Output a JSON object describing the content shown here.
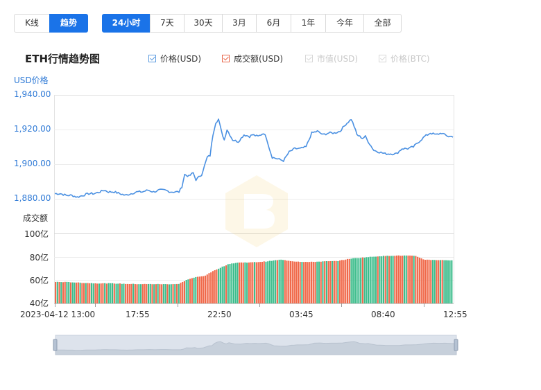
{
  "view_toggle": {
    "kline": "K线",
    "trend": "趋势",
    "active": "trend"
  },
  "ranges": {
    "items": [
      "24小时",
      "7天",
      "30天",
      "3月",
      "6月",
      "1年",
      "今年",
      "全部"
    ],
    "active_index": 0
  },
  "chart_title": "ETH行情趋势图",
  "legend": {
    "price_usd": "价格(USD)",
    "volume_usd": "成交额(USD)",
    "market_cap_usd": "市值(USD)",
    "price_btc": "价格(BTC)"
  },
  "colors": {
    "price_line": "#4a90e2",
    "volume_up": "#f0694a",
    "volume_down": "#3dbd8c",
    "accent": "#1a73e8",
    "disabled": "#c8c8c8"
  },
  "chart_data": {
    "type": "line",
    "title": "ETH行情趋势图",
    "price_axis": {
      "label": "USD价格",
      "ticks": [
        "1,940.00",
        "1,920.00",
        "1,900.00",
        "1,880.00"
      ],
      "ylim": [
        1871,
        1941
      ]
    },
    "volume_axis": {
      "label": "成交额",
      "ticks": [
        "100亿",
        "80亿",
        "60亿",
        "40亿"
      ],
      "ylim": [
        40,
        100
      ]
    },
    "x_ticks": [
      "2023-04-12 13:00",
      "17:55",
      "22:50",
      "03:45",
      "08:40",
      "12:55"
    ],
    "series": [
      {
        "name": "价格(USD)",
        "type": "line",
        "points": [
          [
            0,
            1883
          ],
          [
            4,
            1883
          ],
          [
            8,
            1882
          ],
          [
            12,
            1882
          ],
          [
            16,
            1881
          ],
          [
            20,
            1882
          ],
          [
            24,
            1883
          ],
          [
            28,
            1883
          ],
          [
            32,
            1884
          ],
          [
            35,
            1885
          ],
          [
            38,
            1884
          ],
          [
            42,
            1884
          ],
          [
            46,
            1883
          ],
          [
            50,
            1882
          ],
          [
            54,
            1883
          ],
          [
            58,
            1884
          ],
          [
            62,
            1884
          ],
          [
            66,
            1885
          ],
          [
            70,
            1884
          ],
          [
            74,
            1885
          ],
          [
            78,
            1885
          ],
          [
            82,
            1884
          ],
          [
            86,
            1884
          ],
          [
            88,
            1884
          ],
          [
            90,
            1887
          ],
          [
            92,
            1894
          ],
          [
            95,
            1893
          ],
          [
            98,
            1895
          ],
          [
            100,
            1891
          ],
          [
            104,
            1894
          ],
          [
            108,
            1904
          ],
          [
            110,
            1905
          ],
          [
            112,
            1917
          ],
          [
            114,
            1924
          ],
          [
            116,
            1926
          ],
          [
            118,
            1919
          ],
          [
            120,
            1914
          ],
          [
            122,
            1920
          ],
          [
            126,
            1914
          ],
          [
            130,
            1913
          ],
          [
            134,
            1917
          ],
          [
            138,
            1916
          ],
          [
            140,
            1917
          ],
          [
            144,
            1916
          ],
          [
            148,
            1918
          ],
          [
            150,
            1915
          ],
          [
            152,
            1909
          ],
          [
            154,
            1904
          ],
          [
            158,
            1903
          ],
          [
            162,
            1902
          ],
          [
            166,
            1907
          ],
          [
            170,
            1909
          ],
          [
            174,
            1909
          ],
          [
            178,
            1910
          ],
          [
            182,
            1918
          ],
          [
            186,
            1919
          ],
          [
            190,
            1917
          ],
          [
            194,
            1918
          ],
          [
            198,
            1918
          ],
          [
            202,
            1919
          ],
          [
            206,
            1923
          ],
          [
            210,
            1926
          ],
          [
            212,
            1922
          ],
          [
            214,
            1917
          ],
          [
            218,
            1915
          ],
          [
            220,
            1916
          ],
          [
            222,
            1913
          ],
          [
            226,
            1908
          ],
          [
            230,
            1907
          ],
          [
            234,
            1906
          ],
          [
            238,
            1906
          ],
          [
            242,
            1906
          ],
          [
            246,
            1909
          ],
          [
            250,
            1909
          ],
          [
            254,
            1910
          ],
          [
            258,
            1913
          ],
          [
            262,
            1916
          ],
          [
            266,
            1918
          ],
          [
            270,
            1917
          ],
          [
            274,
            1918
          ],
          [
            276,
            1917
          ],
          [
            279,
            1916
          ],
          [
            282,
            1916
          ]
        ]
      },
      {
        "name": "成交额(USD)",
        "type": "bar",
        "points": [
          [
            0,
            58.5
          ],
          [
            10,
            58.3
          ],
          [
            20,
            57.6
          ],
          [
            30,
            57.2
          ],
          [
            40,
            57.2
          ],
          [
            50,
            56.8
          ],
          [
            60,
            56.6
          ],
          [
            70,
            56.6
          ],
          [
            80,
            56.5
          ],
          [
            88,
            56.7
          ],
          [
            94,
            60.5
          ],
          [
            100,
            62.5
          ],
          [
            106,
            63.5
          ],
          [
            112,
            67.5
          ],
          [
            118,
            71.0
          ],
          [
            124,
            74.0
          ],
          [
            130,
            75.0
          ],
          [
            140,
            75.2
          ],
          [
            150,
            76.0
          ],
          [
            160,
            77.5
          ],
          [
            170,
            76.0
          ],
          [
            180,
            75.5
          ],
          [
            190,
            76.0
          ],
          [
            200,
            76.3
          ],
          [
            210,
            78.5
          ],
          [
            220,
            79.5
          ],
          [
            230,
            80.5
          ],
          [
            240,
            81.0
          ],
          [
            250,
            81.0
          ],
          [
            256,
            80.6
          ],
          [
            262,
            77.5
          ],
          [
            272,
            77.2
          ],
          [
            282,
            77.0
          ]
        ]
      }
    ]
  },
  "range_slider": {
    "label": ""
  }
}
